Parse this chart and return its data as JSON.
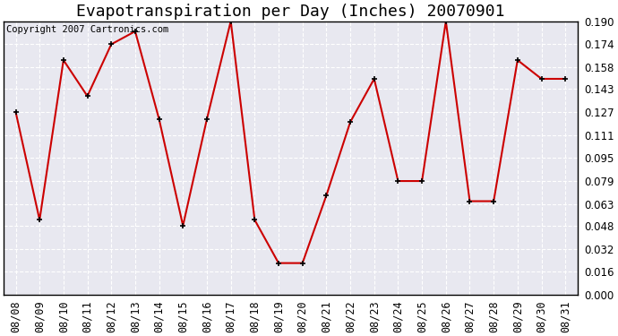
{
  "title": "Evapotranspiration per Day (Inches) 20070901",
  "copyright_text": "Copyright 2007 Cartronics.com",
  "dates": [
    "08/08",
    "08/09",
    "08/10",
    "08/11",
    "08/12",
    "08/13",
    "08/14",
    "08/15",
    "08/16",
    "08/17",
    "08/18",
    "08/19",
    "08/20",
    "08/21",
    "08/22",
    "08/23",
    "08/24",
    "08/25",
    "08/26",
    "08/27",
    "08/28",
    "08/29",
    "08/30",
    "08/31"
  ],
  "values": [
    0.127,
    0.052,
    0.163,
    0.138,
    0.174,
    0.183,
    0.122,
    0.048,
    0.122,
    0.19,
    0.052,
    0.022,
    0.022,
    0.069,
    0.12,
    0.15,
    0.079,
    0.079,
    0.19,
    0.065,
    0.065,
    0.163,
    0.15,
    0.15
  ],
  "line_color": "#cc0000",
  "marker": "+",
  "marker_size": 5,
  "marker_color": "#000000",
  "line_width": 1.5,
  "background_color": "#ffffff",
  "plot_bg_color": "#e8e8f0",
  "grid_color": "#ffffff",
  "grid_linestyle": "--",
  "ylim": [
    0.0,
    0.19
  ],
  "yticks": [
    0.0,
    0.016,
    0.032,
    0.048,
    0.063,
    0.079,
    0.095,
    0.111,
    0.127,
    0.143,
    0.158,
    0.174,
    0.19
  ],
  "title_fontsize": 13,
  "copyright_fontsize": 7.5,
  "tick_fontsize": 8.5
}
